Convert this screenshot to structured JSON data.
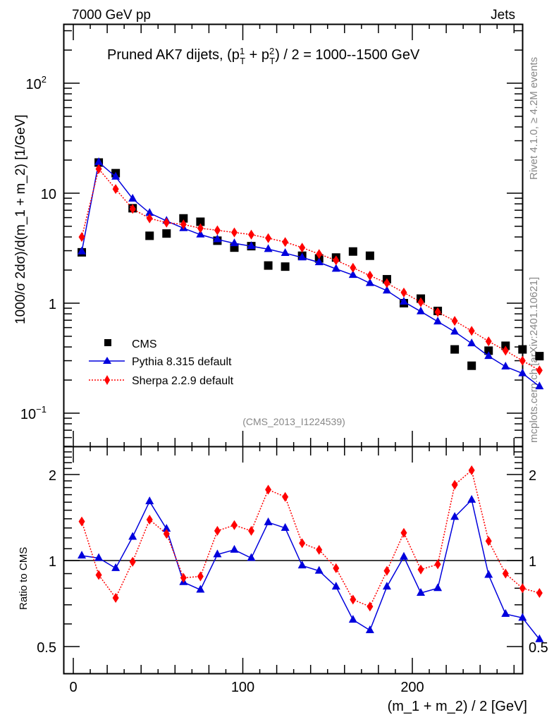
{
  "header": {
    "left_label": "7000 GeV pp",
    "right_label": "Jets"
  },
  "side_labels": {
    "rivet": "Rivet 4.1.0, ≥ 4.2M events",
    "mcplots": "mcplots.cern.ch [arXiv:2401.10621]"
  },
  "chart_data": [
    {
      "type": "scatter",
      "panel": "main",
      "title": "Pruned AK7 dijets, (p_T^1 + p_T^2) / 2 = 1000--1500 GeV",
      "title_parts": {
        "prefix": "Pruned AK7 dijets, (p",
        "sup1": "1",
        "sub1": "T",
        "plus": " + p",
        "sup2": "2",
        "sub2": "T",
        "suffix": ") / 2 = 1000--1500 GeV"
      },
      "ylabel": "1000/σ  2dσ)/d(m_1 + m_2) [1/GeV]",
      "yscale": "log",
      "ylim": [
        0.06,
        400
      ],
      "yticks": [
        {
          "value": 100,
          "label": "10",
          "exp": "2"
        },
        {
          "value": 10,
          "label": "10",
          "exp": ""
        },
        {
          "value": 1,
          "label": "1",
          "exp": ""
        },
        {
          "value": 0.1,
          "label": "10",
          "exp": "−1"
        }
      ],
      "xlim": [
        -6,
        265
      ],
      "annotation": "(CMS_2013_I1224539)",
      "legend_position": "lower-left",
      "x": [
        5,
        15,
        25,
        35,
        45,
        55,
        65,
        75,
        85,
        95,
        105,
        115,
        125,
        135,
        145,
        155,
        165,
        175,
        185,
        195,
        205,
        215,
        225,
        235,
        245,
        255,
        265,
        275
      ],
      "series": [
        {
          "name": "CMS",
          "color": "#000000",
          "marker": "square",
          "line": "none",
          "values": [
            2.9,
            19.0,
            15.2,
            7.3,
            4.1,
            4.3,
            5.9,
            5.5,
            3.7,
            3.2,
            3.3,
            2.2,
            2.15,
            2.7,
            2.55,
            2.6,
            2.95,
            2.7,
            1.65,
            1.0,
            1.1,
            0.85,
            0.38,
            0.27,
            0.37,
            0.41,
            0.38,
            0.33
          ]
        },
        {
          "name": "Pythia 8.315 default",
          "color": "#0000dd",
          "marker": "triangle",
          "line": "solid",
          "values": [
            2.95,
            19.1,
            14.1,
            8.9,
            6.6,
            5.6,
            4.8,
            4.2,
            3.8,
            3.5,
            3.3,
            3.1,
            2.85,
            2.6,
            2.35,
            2.05,
            1.8,
            1.52,
            1.3,
            1.03,
            0.84,
            0.68,
            0.55,
            0.43,
            0.33,
            0.265,
            0.23,
            0.175
          ]
        },
        {
          "name": "Sherpa 2.2.9 default",
          "color": "#ff0000",
          "marker": "diamond",
          "line": "dotted",
          "values": [
            4.0,
            16.6,
            10.9,
            7.2,
            5.9,
            5.4,
            5.2,
            4.8,
            4.6,
            4.4,
            4.2,
            3.9,
            3.6,
            3.2,
            2.8,
            2.45,
            2.1,
            1.78,
            1.52,
            1.25,
            1.02,
            0.83,
            0.69,
            0.56,
            0.45,
            0.37,
            0.3,
            0.245
          ]
        }
      ]
    },
    {
      "type": "line",
      "panel": "ratio",
      "ylabel": "Ratio to CMS",
      "xlabel": "(m_1 + m_2) / 2 [GeV]",
      "yscale": "log",
      "ylim": [
        0.44,
        2.5
      ],
      "yticks": [
        {
          "value": 2,
          "label": "2"
        },
        {
          "value": 1,
          "label": "1"
        },
        {
          "value": 0.5,
          "label": "0.5"
        }
      ],
      "xticks": [
        {
          "value": 0,
          "label": "0"
        },
        {
          "value": 100,
          "label": "100"
        },
        {
          "value": 200,
          "label": "200"
        }
      ],
      "xlim": [
        -6,
        265
      ],
      "reference_line": 1,
      "x": [
        5,
        15,
        25,
        35,
        45,
        55,
        65,
        75,
        85,
        95,
        105,
        115,
        125,
        135,
        145,
        155,
        165,
        175,
        185,
        195,
        205,
        215,
        225,
        235,
        245,
        255,
        265,
        275
      ],
      "series": [
        {
          "name": "Pythia 8.315 default",
          "color": "#0000dd",
          "marker": "triangle",
          "line": "solid",
          "values": [
            1.04,
            1.02,
            0.94,
            1.21,
            1.61,
            1.29,
            0.84,
            0.79,
            1.05,
            1.09,
            1.02,
            1.36,
            1.3,
            0.96,
            0.92,
            0.81,
            0.62,
            0.57,
            0.81,
            1.03,
            0.77,
            0.8,
            1.42,
            1.63,
            0.89,
            0.65,
            0.63,
            0.53
          ]
        },
        {
          "name": "Sherpa 2.2.9 default",
          "color": "#ff0000",
          "marker": "diamond",
          "line": "dotted",
          "values": [
            1.37,
            0.89,
            0.74,
            0.99,
            1.39,
            1.24,
            0.87,
            0.88,
            1.27,
            1.33,
            1.27,
            1.77,
            1.67,
            1.15,
            1.09,
            0.94,
            0.73,
            0.69,
            0.92,
            1.25,
            0.93,
            0.97,
            1.84,
            2.07,
            1.17,
            0.9,
            0.8,
            0.77
          ]
        }
      ]
    }
  ]
}
